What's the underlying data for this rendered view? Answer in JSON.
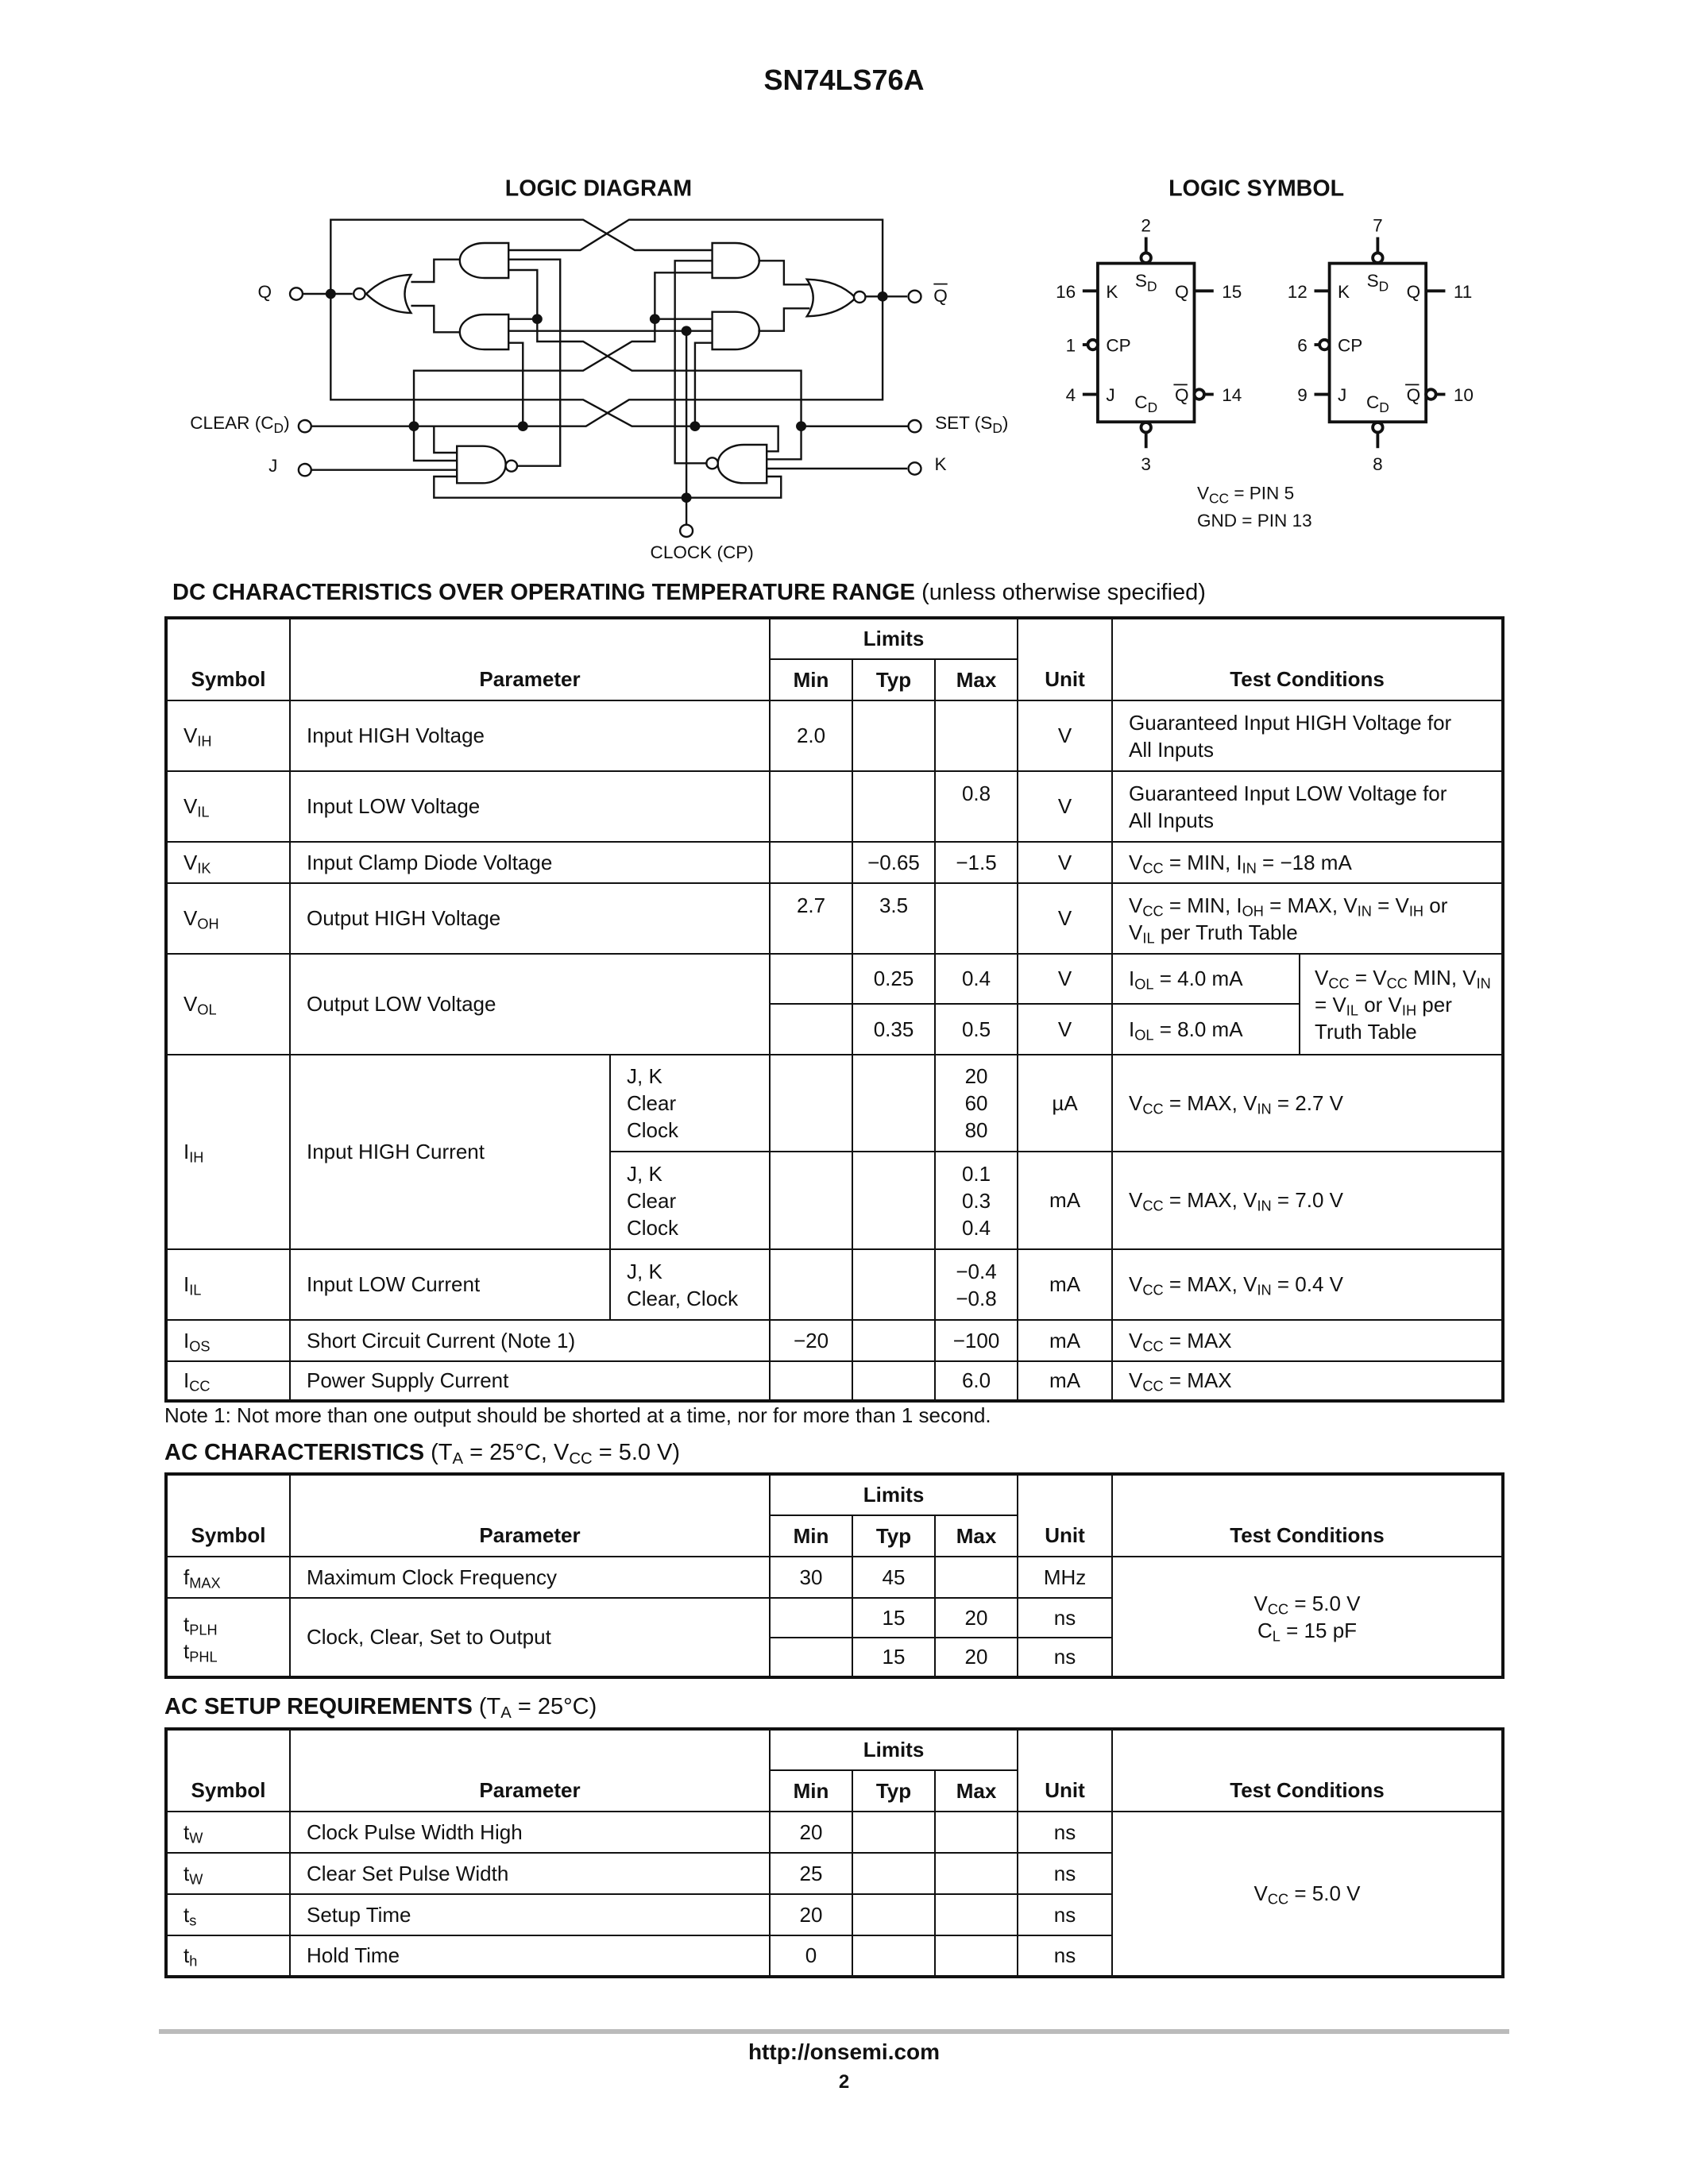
{
  "header": {
    "title": "SN74LS76A"
  },
  "logic_diagram": {
    "title": "LOGIC DIAGRAM",
    "labels": {
      "q": "Q",
      "q_bar": "Q",
      "clear": [
        "CLEAR (C",
        "D",
        ")"
      ],
      "set": [
        "SET (S",
        "D",
        ")"
      ],
      "j": "J",
      "k": "K",
      "clock": "CLOCK (CP)"
    }
  },
  "logic_symbol": {
    "title": "LOGIC SYMBOL",
    "units": [
      {
        "sd_pin": "2",
        "cd_pin": "3",
        "k_pin": "16",
        "cp_pin": "1",
        "j_pin": "4",
        "q_pin": "15",
        "qbar_pin": "14"
      },
      {
        "sd_pin": "7",
        "cd_pin": "8",
        "k_pin": "12",
        "cp_pin": "6",
        "j_pin": "9",
        "q_pin": "11",
        "qbar_pin": "10"
      }
    ],
    "pin_labels": {
      "k": "K",
      "cp": "CP",
      "j": "J",
      "q": "Q",
      "sd": [
        "S",
        "D"
      ],
      "cd": [
        "C",
        "D"
      ]
    },
    "vcc": [
      "V",
      "CC",
      " = PIN 5"
    ],
    "gnd": "GND = PIN 13"
  },
  "headers": {
    "symbol": "Symbol",
    "parameter": "Parameter",
    "limits": "Limits",
    "min": "Min",
    "typ": "Typ",
    "max": "Max",
    "unit": "Unit",
    "conditions": "Test Conditions"
  },
  "dc": {
    "title": "DC CHARACTERISTICS OVER OPERATING TEMPERATURE RANGE",
    "subtitle": "(unless otherwise specified)",
    "rows": [
      {
        "symbol": [
          "V",
          "IH"
        ],
        "parameter": "Input HIGH Voltage",
        "min": "2.0",
        "typ": "",
        "max": "",
        "unit": "V",
        "conditions": [
          "Guaranteed Input HIGH Voltage for All Inputs"
        ]
      },
      {
        "symbol": [
          "V",
          "IL"
        ],
        "parameter": "Input LOW Voltage",
        "min": "",
        "typ": "",
        "max": "0.8",
        "unit": "V",
        "conditions": [
          "Guaranteed Input LOW Voltage for All Inputs"
        ]
      },
      {
        "symbol": [
          "V",
          "IK"
        ],
        "parameter": "Input Clamp Diode Voltage",
        "min": "",
        "typ": "−0.65",
        "max": "−1.5",
        "unit": "V",
        "conditions": [
          "V",
          "CC",
          " = MIN, I",
          "IN",
          " = −18 mA"
        ]
      },
      {
        "symbol": [
          "V",
          "OH"
        ],
        "parameter": "Output HIGH Voltage",
        "min": "2.7",
        "typ": "3.5",
        "max": "",
        "unit": "V",
        "conditions": [
          "V",
          "CC",
          " = MIN, I",
          "OH",
          " = MAX, V",
          "IN",
          " = V",
          "IH",
          " or V",
          "IL",
          " per Truth Table"
        ]
      },
      {
        "symbol": [
          "V",
          "OL"
        ],
        "parameter": "Output LOW Voltage",
        "sub": [
          {
            "min": "",
            "typ": "0.25",
            "max": "0.4",
            "unit": "V",
            "conditions": [
              "I",
              "OL",
              " = 4.0 mA"
            ]
          },
          {
            "min": "",
            "typ": "0.35",
            "max": "0.5",
            "unit": "V",
            "conditions": [
              "I",
              "OL",
              " = 8.0 mA"
            ]
          }
        ],
        "shared_conditions": [
          "V",
          "CC",
          " = V",
          "CC",
          " MIN, V",
          "IN",
          " = V",
          "IL",
          " or V",
          "IH",
          " per Truth Table"
        ]
      },
      {
        "symbol": [
          "I",
          "IH"
        ],
        "parameter": "Input HIGH Current",
        "sub": [
          {
            "inputs": [
              "J, K",
              "Clear",
              "Clock"
            ],
            "max": [
              "20",
              "60",
              "80"
            ],
            "unit": "µA",
            "conditions": [
              "V",
              "CC",
              " = MAX, V",
              "IN",
              " = 2.7 V"
            ]
          },
          {
            "inputs": [
              "J, K",
              "Clear",
              "Clock"
            ],
            "max": [
              "0.1",
              "0.3",
              "0.4"
            ],
            "unit": "mA",
            "conditions": [
              "V",
              "CC",
              " = MAX, V",
              "IN",
              " = 7.0 V"
            ]
          }
        ]
      },
      {
        "symbol": [
          "I",
          "IL"
        ],
        "parameter": "Input LOW Current",
        "inputs": [
          "J, K",
          "Clear, Clock"
        ],
        "max": [
          "−0.4",
          "−0.8"
        ],
        "unit": "mA",
        "conditions": [
          "V",
          "CC",
          " = MAX, V",
          "IN",
          " = 0.4 V"
        ]
      },
      {
        "symbol": [
          "I",
          "OS"
        ],
        "parameter": "Short Circuit Current (Note 1)",
        "min": "−20",
        "typ": "",
        "max": "−100",
        "unit": "mA",
        "conditions": [
          "V",
          "CC",
          " = MAX"
        ]
      },
      {
        "symbol": [
          "I",
          "CC"
        ],
        "parameter": "Power Supply Current",
        "min": "",
        "typ": "",
        "max": "6.0",
        "unit": "mA",
        "conditions": [
          "V",
          "CC",
          " = MAX"
        ]
      }
    ],
    "note": "Note 1: Not more than one output should be shorted at a time, nor for more than 1 second."
  },
  "ac": {
    "title": "AC CHARACTERISTICS",
    "subtitle": [
      "(T",
      "A",
      " = 25°C, V",
      "CC",
      " = 5.0 V)"
    ],
    "rows": [
      {
        "symbol": [
          "f",
          "MAX"
        ],
        "parameter": "Maximum Clock Frequency",
        "min": "30",
        "typ": "45",
        "max": "",
        "unit": "MHz"
      },
      {
        "symbol": [
          "t",
          "PLH"
        ],
        "parameter": "Clock, Clear, Set to Output",
        "min": "",
        "typ": "15",
        "max": "20",
        "unit": "ns"
      },
      {
        "symbol": [
          "t",
          "PHL"
        ],
        "min": "",
        "typ": "15",
        "max": "20",
        "unit": "ns"
      }
    ],
    "conditions": [
      [
        "V",
        "CC",
        " = 5.0 V"
      ],
      [
        "C",
        "L",
        " = 15 pF"
      ]
    ]
  },
  "setup": {
    "title": "AC SETUP REQUIREMENTS",
    "subtitle": [
      "(T",
      "A",
      " = 25°C)"
    ],
    "rows": [
      {
        "symbol": [
          "t",
          "W"
        ],
        "parameter": "Clock Pulse Width High",
        "min": "20",
        "typ": "",
        "max": "",
        "unit": "ns"
      },
      {
        "symbol": [
          "t",
          "W"
        ],
        "parameter": "Clear Set Pulse Width",
        "min": "25",
        "typ": "",
        "max": "",
        "unit": "ns"
      },
      {
        "symbol": [
          "t",
          "s"
        ],
        "parameter": "Setup Time",
        "min": "20",
        "typ": "",
        "max": "",
        "unit": "ns"
      },
      {
        "symbol": [
          "t",
          "h"
        ],
        "parameter": "Hold Time",
        "min": "0",
        "typ": "",
        "max": "",
        "unit": "ns"
      }
    ],
    "conditions": [
      "V",
      "CC",
      " = 5.0 V"
    ]
  },
  "footer": {
    "url": "http://onsemi.com",
    "page": "2"
  }
}
